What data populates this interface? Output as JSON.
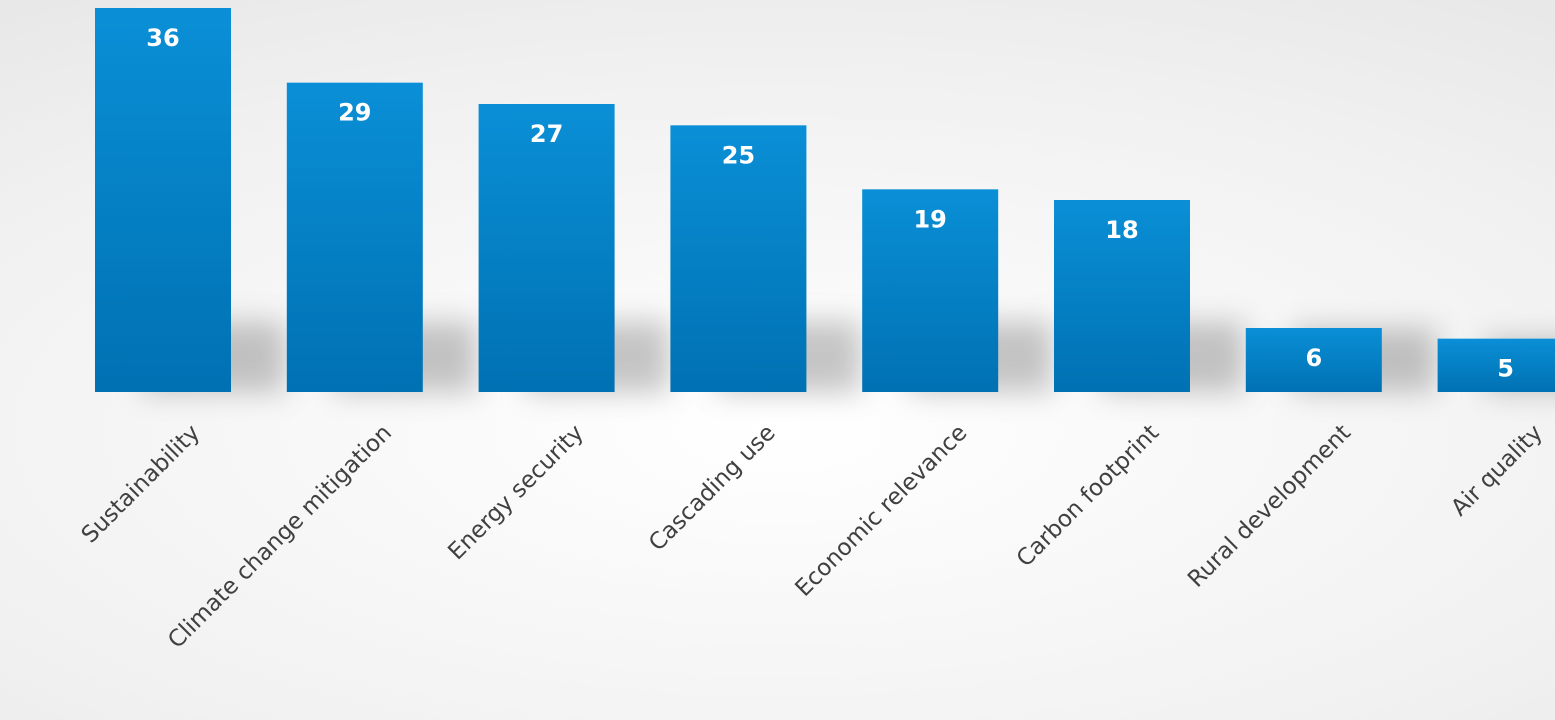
{
  "chart_data": {
    "type": "bar",
    "categories": [
      "Sustainability",
      "Climate change mitigation",
      "Energy security",
      "Cascading use",
      "Economic relevance",
      "Carbon footprint",
      "Rural development",
      "Air quality"
    ],
    "values": [
      36,
      29,
      27,
      25,
      19,
      18,
      6,
      5
    ],
    "title": "",
    "xlabel": "",
    "ylabel": "",
    "ylim": [
      0,
      36
    ],
    "grid": false,
    "legend": "none",
    "data_labels": true,
    "colors": {
      "bar_top": "#0a8fd6",
      "bar_bottom": "#0071b3",
      "label": "#ffffff",
      "tick": "#404040"
    }
  }
}
